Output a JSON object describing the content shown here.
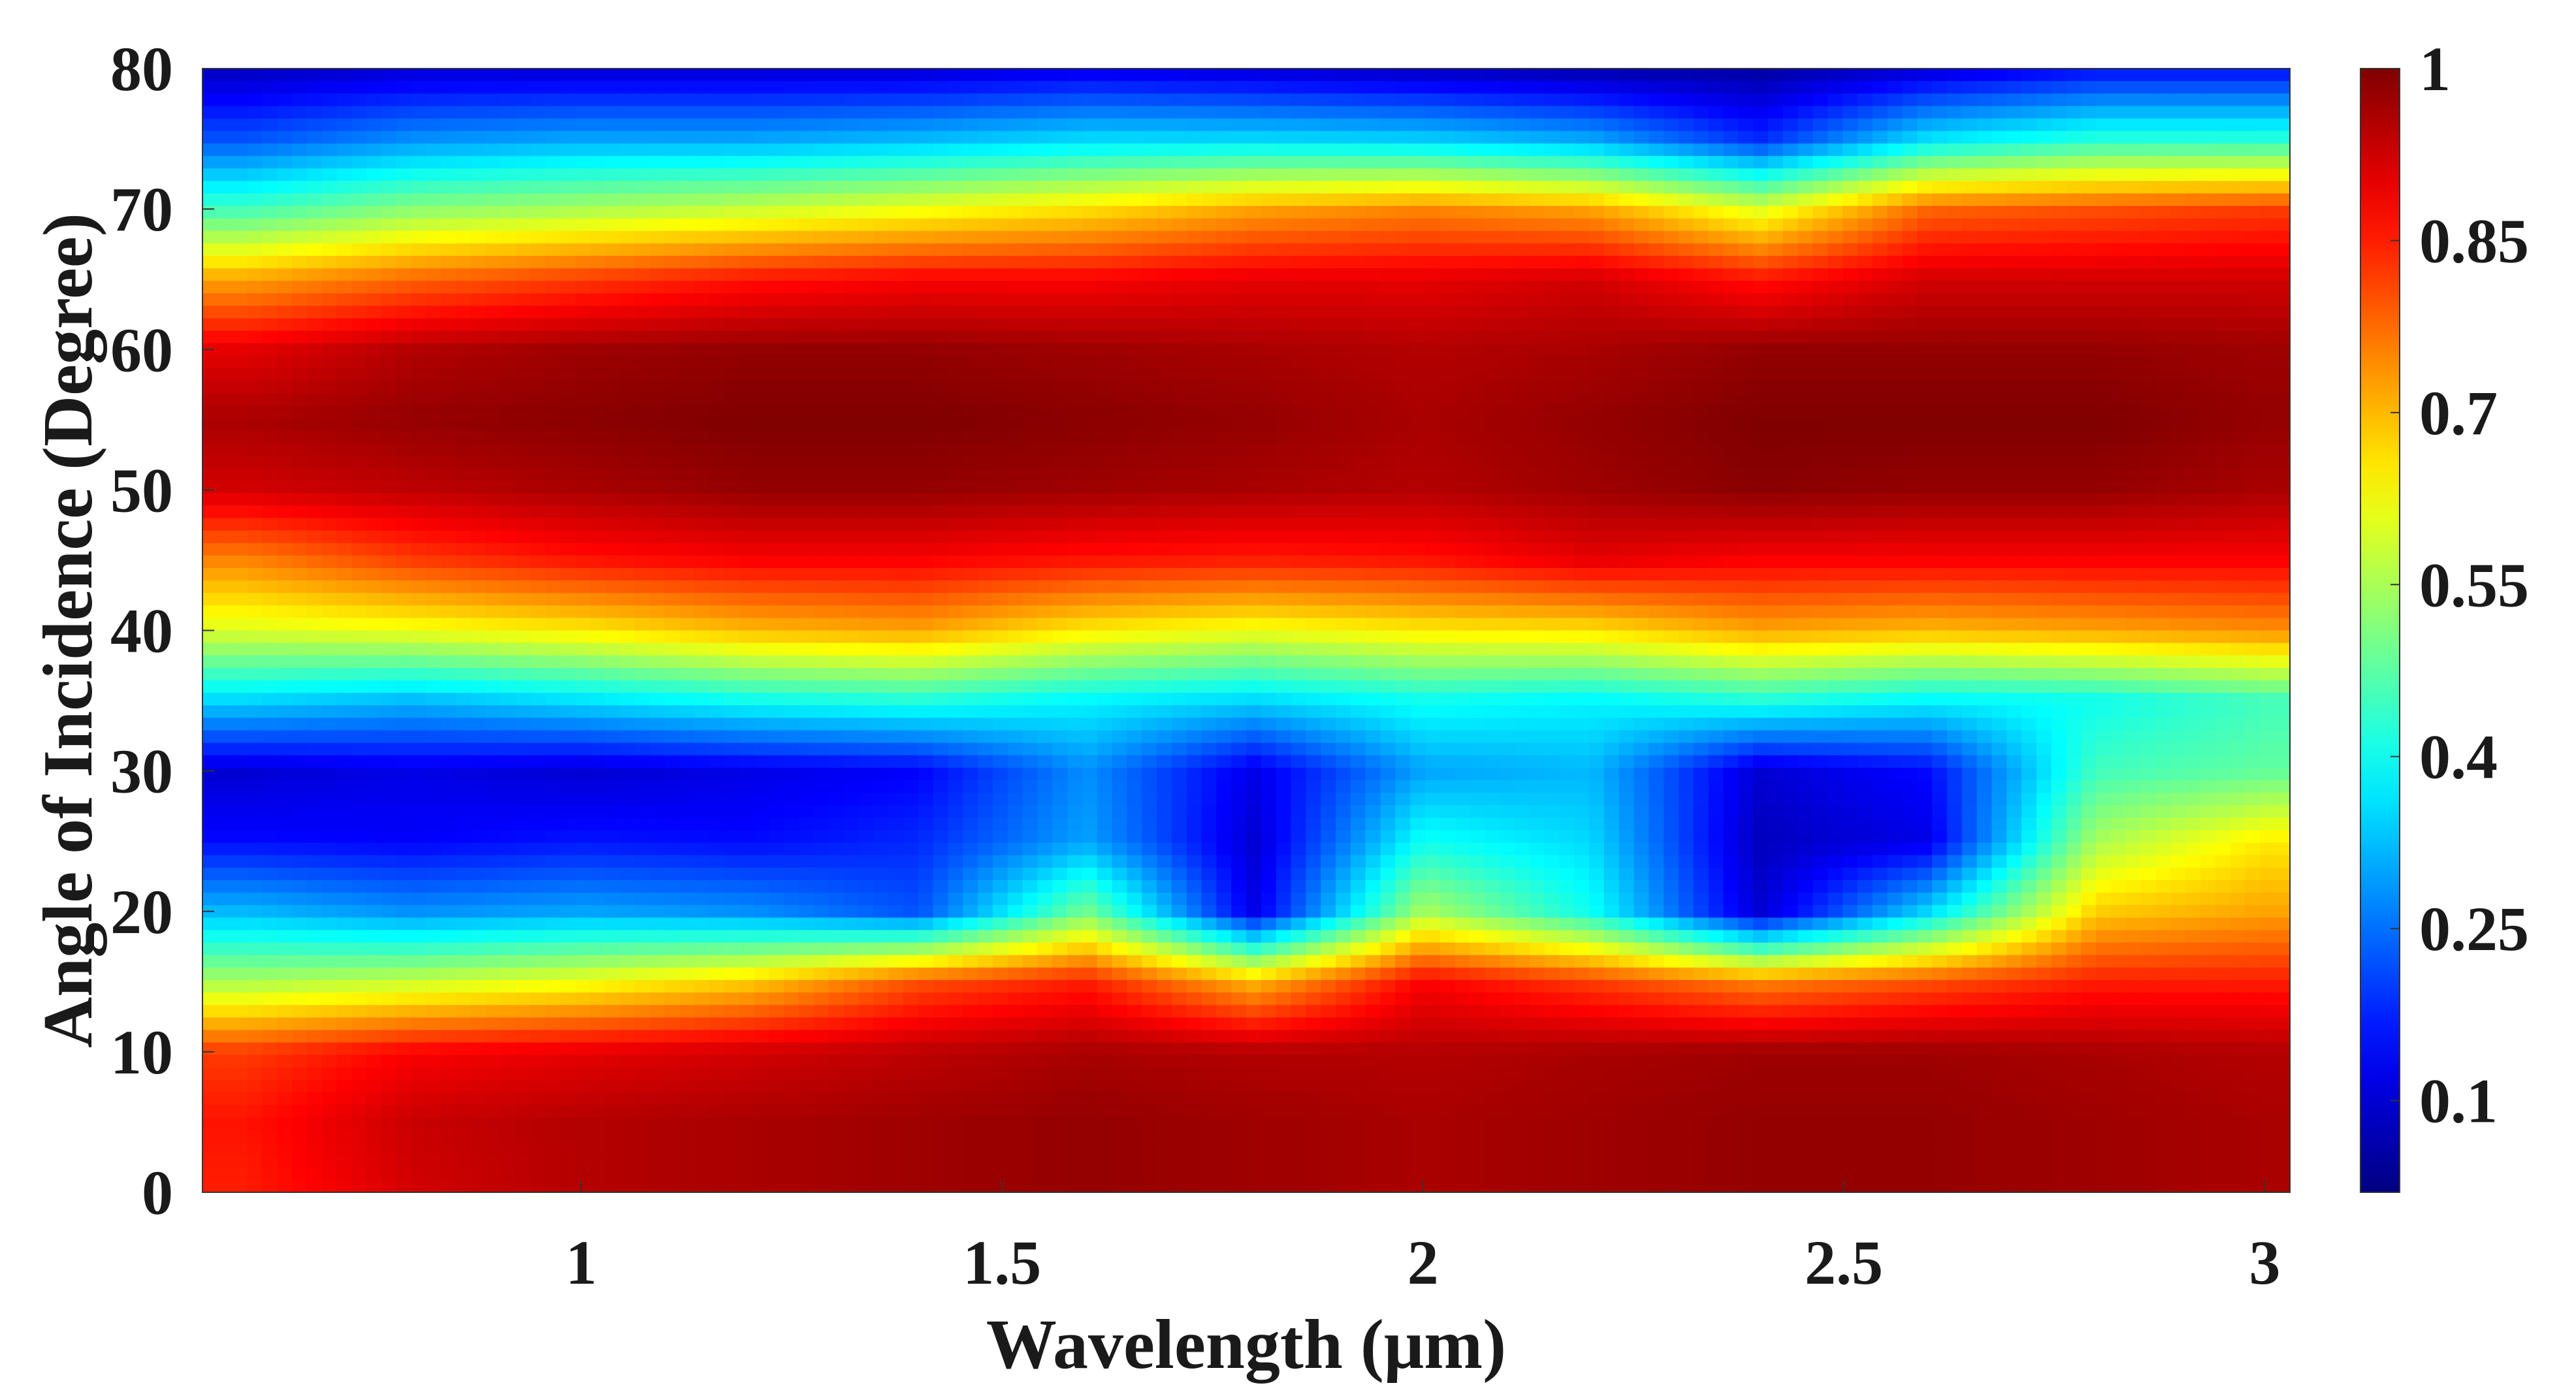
{
  "chart_data": {
    "type": "heatmap",
    "title": "",
    "xlabel": "Wavelength (μm)",
    "ylabel": "Angle of Incidence (Degree)",
    "xlim": [
      0.55,
      3.03
    ],
    "ylim": [
      0,
      80
    ],
    "xticks": [
      1,
      1.5,
      2,
      2.5,
      3
    ],
    "xtick_labels": [
      "1",
      "1.5",
      "2",
      "2.5",
      "3"
    ],
    "yticks": [
      0,
      10,
      20,
      30,
      40,
      50,
      60,
      70,
      80
    ],
    "ytick_labels": [
      "0",
      "10",
      "20",
      "30",
      "40",
      "50",
      "60",
      "70",
      "80"
    ],
    "colormap": "jet",
    "colorbar": {
      "range": [
        0.02,
        1
      ],
      "ticks": [
        0.1,
        0.25,
        0.4,
        0.55,
        0.7,
        0.85,
        1
      ],
      "tick_labels": [
        "0.1",
        "0.25",
        "0.4",
        "0.55",
        "0.7",
        "0.85",
        "1"
      ]
    },
    "grid": false,
    "x": [
      0.6,
      0.8,
      1.0,
      1.2,
      1.4,
      1.6,
      1.8,
      2.0,
      2.2,
      2.4,
      2.6,
      2.8,
      3.0
    ],
    "y": [
      0,
      5,
      10,
      15,
      20,
      25,
      30,
      35,
      40,
      45,
      50,
      55,
      60,
      65,
      70,
      75,
      80
    ],
    "z": [
      [
        0.85,
        0.92,
        0.95,
        0.96,
        0.97,
        0.98,
        0.97,
        0.96,
        0.97,
        0.98,
        0.98,
        0.97,
        0.96
      ],
      [
        0.86,
        0.93,
        0.95,
        0.96,
        0.97,
        0.98,
        0.97,
        0.96,
        0.97,
        0.98,
        0.98,
        0.97,
        0.96
      ],
      [
        0.82,
        0.88,
        0.9,
        0.92,
        0.94,
        0.96,
        0.95,
        0.95,
        0.96,
        0.97,
        0.97,
        0.96,
        0.95
      ],
      [
        0.55,
        0.58,
        0.62,
        0.68,
        0.8,
        0.85,
        0.7,
        0.88,
        0.82,
        0.75,
        0.8,
        0.85,
        0.85
      ],
      [
        0.32,
        0.28,
        0.3,
        0.28,
        0.22,
        0.5,
        0.12,
        0.55,
        0.4,
        0.1,
        0.35,
        0.68,
        0.72
      ],
      [
        0.15,
        0.14,
        0.16,
        0.15,
        0.18,
        0.3,
        0.1,
        0.4,
        0.35,
        0.08,
        0.12,
        0.55,
        0.65
      ],
      [
        0.1,
        0.12,
        0.1,
        0.12,
        0.14,
        0.28,
        0.12,
        0.3,
        0.32,
        0.1,
        0.15,
        0.45,
        0.48
      ],
      [
        0.35,
        0.32,
        0.36,
        0.4,
        0.42,
        0.38,
        0.35,
        0.4,
        0.38,
        0.42,
        0.38,
        0.4,
        0.45
      ],
      [
        0.6,
        0.62,
        0.65,
        0.7,
        0.72,
        0.65,
        0.62,
        0.65,
        0.66,
        0.72,
        0.7,
        0.72,
        0.74
      ],
      [
        0.75,
        0.82,
        0.86,
        0.88,
        0.88,
        0.86,
        0.85,
        0.86,
        0.9,
        0.88,
        0.88,
        0.88,
        0.88
      ],
      [
        0.92,
        0.94,
        0.96,
        0.98,
        0.98,
        0.97,
        0.96,
        0.95,
        0.97,
        0.99,
        0.98,
        0.98,
        0.96
      ],
      [
        0.96,
        0.98,
        0.99,
        1.0,
        1.0,
        0.99,
        0.98,
        0.96,
        0.98,
        1.0,
        1.0,
        1.0,
        0.98
      ],
      [
        0.9,
        0.95,
        0.97,
        0.98,
        0.98,
        0.97,
        0.96,
        0.95,
        0.96,
        0.98,
        0.98,
        0.98,
        0.97
      ],
      [
        0.72,
        0.78,
        0.82,
        0.86,
        0.88,
        0.88,
        0.9,
        0.9,
        0.92,
        0.86,
        0.92,
        0.92,
        0.92
      ],
      [
        0.45,
        0.52,
        0.55,
        0.58,
        0.62,
        0.66,
        0.72,
        0.75,
        0.72,
        0.6,
        0.78,
        0.8,
        0.82
      ],
      [
        0.22,
        0.28,
        0.3,
        0.3,
        0.32,
        0.35,
        0.35,
        0.34,
        0.3,
        0.18,
        0.36,
        0.42,
        0.42
      ],
      [
        0.08,
        0.1,
        0.1,
        0.1,
        0.1,
        0.12,
        0.1,
        0.08,
        0.06,
        0.05,
        0.1,
        0.15,
        0.15
      ]
    ]
  }
}
